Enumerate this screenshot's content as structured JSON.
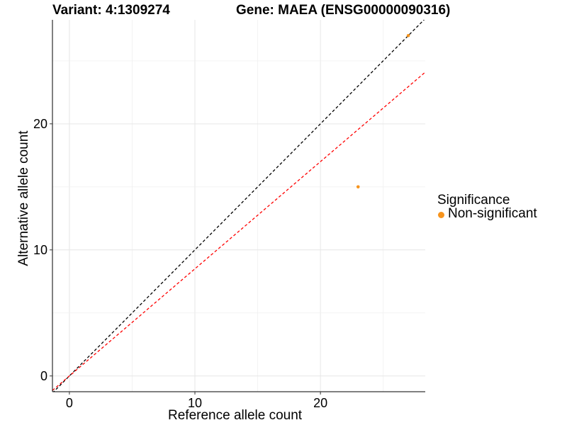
{
  "header": {
    "variant": "Variant: 4:1309274",
    "gene": "Gene: MAEA (ENSG00000090316)"
  },
  "legend": {
    "title": "Significance",
    "items": [
      {
        "label": "Non-significant",
        "color": "#F7941D"
      }
    ]
  },
  "chart_data": {
    "type": "scatter",
    "title": "",
    "xlabel": "Reference allele count",
    "ylabel": "Alternative allele count",
    "xlim": [
      -1.35,
      28.35
    ],
    "ylim": [
      -1.25,
      28.25
    ],
    "x_ticks": [
      0,
      10,
      20
    ],
    "y_ticks": [
      0,
      10,
      20
    ],
    "grid": true,
    "series": [
      {
        "name": "Non-significant",
        "color": "#F7941D",
        "points": [
          {
            "x": 23,
            "y": 15
          },
          {
            "x": 27,
            "y": 27
          }
        ]
      }
    ],
    "reference_lines": [
      {
        "slope": 1.0,
        "intercept": 0,
        "color": "#000000",
        "style": "dashed"
      },
      {
        "slope": 0.85,
        "intercept": 0,
        "color": "#FF0000",
        "style": "dashed"
      }
    ]
  }
}
